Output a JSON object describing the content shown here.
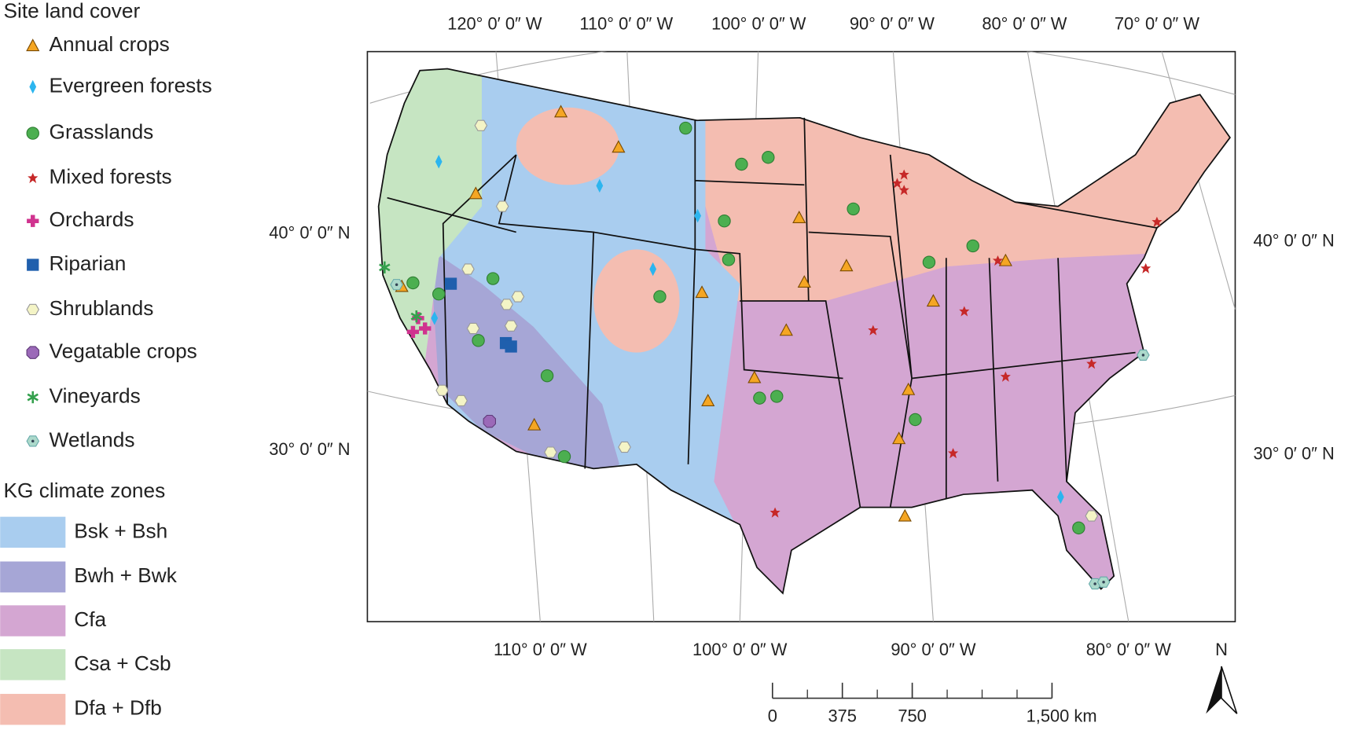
{
  "legend": {
    "land_cover_title": "Site land cover",
    "land_cover": [
      "Annual crops",
      "Evergreen forests",
      "Grasslands",
      "Mixed forests",
      "Orchards",
      "Riparian",
      "Shrublands",
      "Vegatable crops",
      "Vineyards",
      "Wetlands"
    ],
    "climate_title": "KG climate zones",
    "climate_zones": [
      {
        "label": "Bsk + Bsh",
        "color": "#a9cdef"
      },
      {
        "label": "Bwh + Bwk",
        "color": "#a6a6d6"
      },
      {
        "label": "Cfa",
        "color": "#d4a6d2"
      },
      {
        "label": "Csa + Csb",
        "color": "#c6e5c2"
      },
      {
        "label": "Dfa + Dfb",
        "color": "#f4bdb1"
      }
    ]
  },
  "map": {
    "graticule_top": [
      "120° 0′ 0″ W",
      "110° 0′ 0″ W",
      "100° 0′ 0″ W",
      "90° 0′ 0″ W",
      "80° 0′ 0″ W",
      "70° 0′ 0″ W"
    ],
    "graticule_bottom": [
      "110° 0′ 0″ W",
      "100° 0′ 0″ W",
      "90° 0′ 0″ W",
      "80° 0′ 0″ W"
    ],
    "graticule_left": [
      "40° 0′ 0″ N",
      "30° 0′ 0″ N"
    ],
    "graticule_right": [
      "40° 0′ 0″ N",
      "30° 0′ 0″ N"
    ]
  },
  "scale_bar": {
    "max": 1500,
    "ticks": [
      0,
      375,
      750,
      {
        "value": 1500,
        "label": "1,500 km"
      }
    ]
  },
  "north_label": "N"
}
